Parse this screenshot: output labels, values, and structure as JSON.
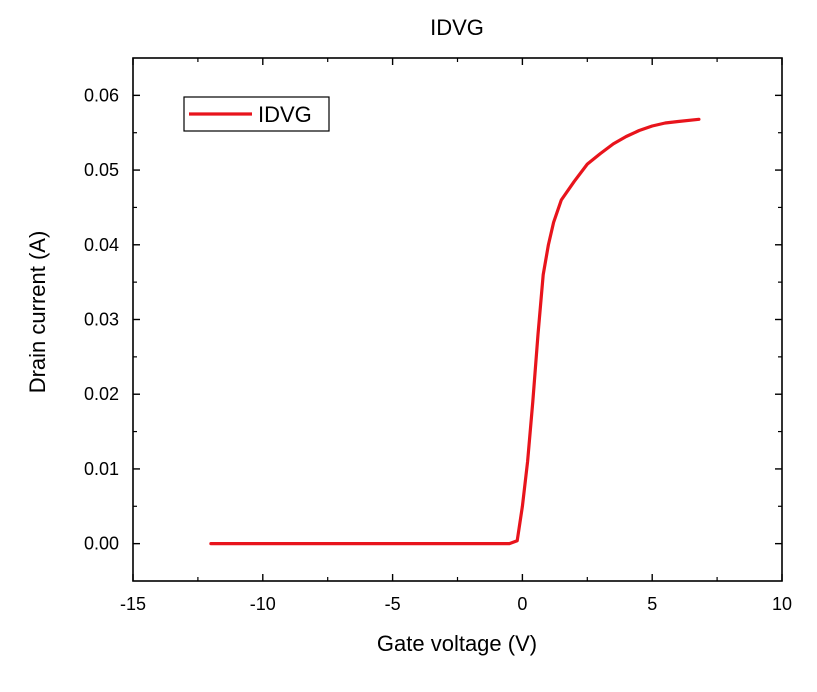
{
  "chart_data": {
    "type": "line",
    "title": "IDVG",
    "xlabel": "Gate voltage (V)",
    "ylabel": "Drain current (A)",
    "xlim": [
      -15,
      10
    ],
    "ylim": [
      -0.005,
      0.065
    ],
    "xticks": [
      -15,
      -10,
      -5,
      0,
      5,
      10
    ],
    "xtick_labels": [
      "-15",
      "-10",
      "-5",
      "0",
      "5",
      "10"
    ],
    "yticks": [
      0.0,
      0.01,
      0.02,
      0.03,
      0.04,
      0.05,
      0.06
    ],
    "ytick_labels": [
      "0.00",
      "0.01",
      "0.02",
      "0.03",
      "0.04",
      "0.05",
      "0.06"
    ],
    "grid": false,
    "legend": {
      "placement": "top-left",
      "entries": [
        "IDVG"
      ]
    },
    "series": [
      {
        "name": "IDVG",
        "color": "#e8141c",
        "x": [
          -12,
          -10,
          -8,
          -6,
          -4,
          -2,
          -1,
          -0.5,
          -0.2,
          0.0,
          0.2,
          0.4,
          0.6,
          0.8,
          1.0,
          1.2,
          1.5,
          2.0,
          2.5,
          3.0,
          3.5,
          4.0,
          4.5,
          5.0,
          5.5,
          6.0,
          6.8
        ],
        "y": [
          0.0,
          0.0,
          0.0,
          0.0,
          0.0,
          0.0,
          0.0,
          0.0,
          0.0004,
          0.005,
          0.011,
          0.019,
          0.028,
          0.036,
          0.04,
          0.043,
          0.046,
          0.0485,
          0.0508,
          0.0522,
          0.0535,
          0.0545,
          0.0553,
          0.0559,
          0.0563,
          0.0565,
          0.0568
        ]
      }
    ]
  }
}
